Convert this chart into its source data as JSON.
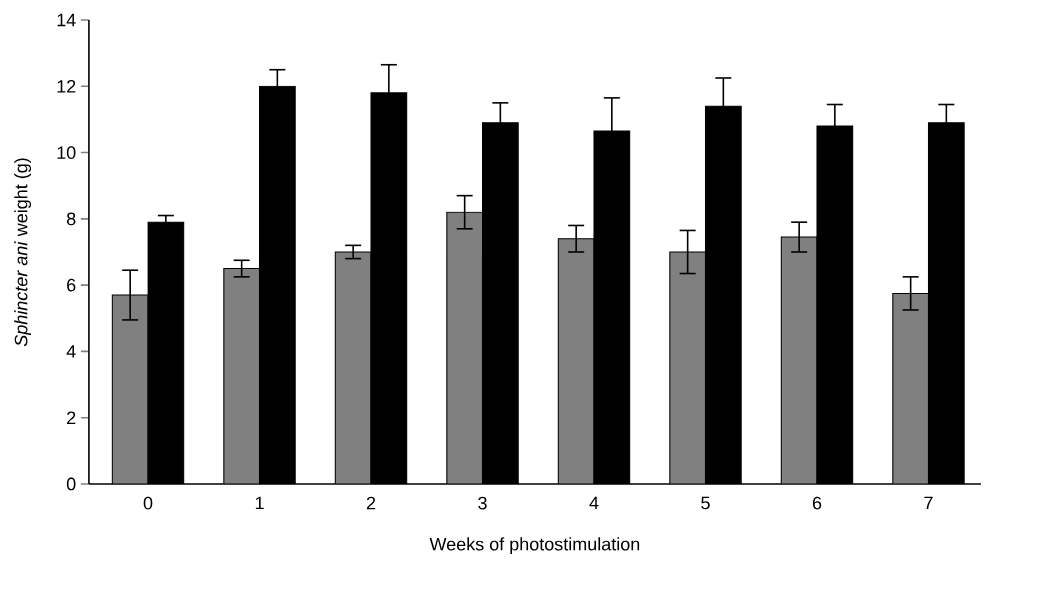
{
  "chart_data": {
    "type": "bar",
    "xlabel": "Weeks of photostimulation",
    "ylabel": "*Sphincter ani* weight (g)",
    "categories": [
      "0",
      "1",
      "2",
      "3",
      "4",
      "5",
      "6",
      "7"
    ],
    "series": [
      {
        "color": "#808080",
        "values": [
          5.7,
          6.5,
          7.0,
          8.2,
          7.4,
          7.0,
          7.45,
          5.75
        ],
        "errors": [
          0.75,
          0.25,
          0.2,
          0.5,
          0.4,
          0.65,
          0.45,
          0.5
        ]
      },
      {
        "color": "#000000",
        "values": [
          7.9,
          12.0,
          11.8,
          10.9,
          10.65,
          11.4,
          10.8,
          10.9
        ],
        "errors": [
          0.2,
          0.5,
          0.85,
          0.6,
          1.0,
          0.85,
          0.65,
          0.55
        ]
      }
    ],
    "ylim": [
      0,
      14
    ],
    "yticks": [
      0,
      2,
      4,
      6,
      8,
      10,
      12,
      14
    ],
    "grid": false
  }
}
